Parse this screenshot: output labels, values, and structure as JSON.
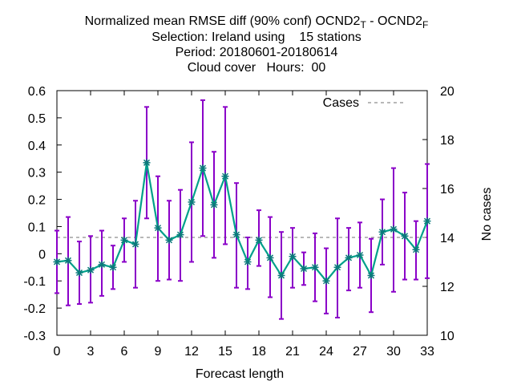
{
  "title": {
    "line1_prefix": "Normalized mean RMSE diff (90% conf) OCND2",
    "line1_sub1": "T",
    "line1_mid": " - OCND2",
    "line1_sub2": "F",
    "line2": "Selection: Ireland using    15 stations",
    "line3": "Period: 20180601-20180614",
    "line4": "Cloud cover   Hours:  00"
  },
  "chart_data": {
    "type": "line",
    "xlabel": "Forecast length",
    "ylabel": "",
    "y2label": "No cases",
    "xlim": [
      0,
      33
    ],
    "ylim": [
      -0.3,
      0.6
    ],
    "y2lim": [
      10,
      20
    ],
    "x_ticks": [
      "0",
      "3",
      "6",
      "9",
      "12",
      "15",
      "18",
      "21",
      "24",
      "27",
      "30",
      "33"
    ],
    "y_ticks": [
      "-0.3",
      "-0.2",
      "-0.1",
      "0",
      "0.1",
      "0.2",
      "0.3",
      "0.4",
      "0.5",
      "0.6"
    ],
    "y2_ticks": [
      "10",
      "12",
      "14",
      "16",
      "18",
      "20"
    ],
    "legend": {
      "label": "Cases",
      "position": "top-right"
    },
    "cases": {
      "x": [
        0,
        33
      ],
      "values": [
        14,
        14
      ]
    },
    "series": [
      {
        "x": [
          0,
          1,
          2,
          3,
          4,
          5,
          6,
          7,
          8,
          9,
          10,
          11,
          12,
          13,
          14,
          15,
          16,
          17,
          18,
          19,
          20,
          21,
          22,
          23,
          24,
          25,
          26,
          27,
          28,
          29,
          30,
          31,
          32,
          33
        ],
        "values": [
          -0.03,
          -0.025,
          -0.07,
          -0.06,
          -0.04,
          -0.05,
          0.05,
          0.035,
          0.335,
          0.095,
          0.05,
          0.07,
          0.19,
          0.315,
          0.18,
          0.285,
          0.07,
          -0.03,
          0.05,
          -0.015,
          -0.08,
          -0.01,
          -0.055,
          -0.05,
          -0.1,
          -0.05,
          -0.015,
          -0.005,
          -0.08,
          0.08,
          0.09,
          0.065,
          0.015,
          0.12
        ],
        "err_low": [
          -0.145,
          -0.19,
          -0.185,
          -0.18,
          -0.155,
          -0.13,
          -0.03,
          -0.125,
          0.13,
          -0.1,
          -0.095,
          -0.1,
          -0.03,
          0.065,
          -0.015,
          0.035,
          -0.125,
          -0.13,
          -0.045,
          -0.16,
          -0.24,
          -0.125,
          -0.115,
          -0.175,
          -0.22,
          -0.235,
          -0.135,
          -0.125,
          -0.215,
          -0.04,
          -0.14,
          -0.095,
          -0.095,
          -0.09
        ],
        "err_high": [
          0.085,
          0.135,
          0.045,
          0.065,
          0.085,
          0.03,
          0.13,
          0.195,
          0.54,
          0.285,
          0.195,
          0.235,
          0.41,
          0.565,
          0.375,
          0.54,
          0.26,
          0.06,
          0.16,
          0.135,
          0.08,
          0.095,
          0.005,
          0.075,
          0.02,
          0.13,
          0.095,
          0.115,
          0.055,
          0.2,
          0.315,
          0.225,
          0.12,
          0.33
        ]
      }
    ],
    "colors": {
      "line": "#00a08a",
      "marker": "#0a7a7a",
      "errorbar": "#8a00c8",
      "cases": "#a0a0a0"
    }
  }
}
